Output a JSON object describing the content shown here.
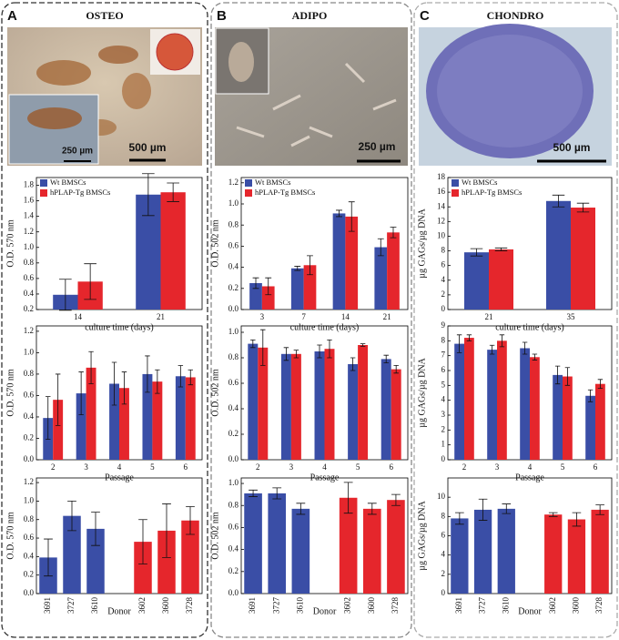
{
  "panels": [
    {
      "letter": "A",
      "title": "OSTEO",
      "scale_bars": [
        "250 µm",
        "500 µm"
      ]
    },
    {
      "letter": "B",
      "title": "ADIPO",
      "scale_bars": [
        "250 µm"
      ]
    },
    {
      "letter": "C",
      "title": "CHONDRO",
      "scale_bars": [
        "500 µm"
      ]
    }
  ],
  "chart_data": [
    {
      "type": "bar",
      "ylabel": "O.D. 570 nm",
      "xlabel": "culture time (days)",
      "categories": [
        "14",
        "21"
      ],
      "series": [
        {
          "name": "Wt BMSCs",
          "color": "#3a4ea6",
          "values": [
            0.39,
            1.68
          ],
          "errors": [
            0.2,
            0.27
          ]
        },
        {
          "name": "hPLAP-Tg BMSCs",
          "color": "#e5262c",
          "values": [
            0.56,
            1.71
          ],
          "errors": [
            0.23,
            0.12
          ]
        }
      ],
      "ylim": [
        0.2,
        1.9
      ],
      "yticks": [
        0.2,
        0.4,
        0.6,
        0.8,
        {
          "value": 1,
          "label": "1.0"
        },
        1.2,
        1.4,
        1.6,
        1.8
      ],
      "legend": "upper left"
    },
    {
      "type": "bar",
      "ylabel": "O.D. 570 nm",
      "xlabel": "Passage",
      "categories": [
        "2",
        "3",
        "4",
        "5",
        "6"
      ],
      "series": [
        {
          "color": "#3a4ea6",
          "values": [
            0.39,
            0.62,
            0.71,
            0.8,
            0.78
          ],
          "errors": [
            0.2,
            0.2,
            0.2,
            0.17,
            0.1
          ]
        },
        {
          "color": "#e5262c",
          "values": [
            0.56,
            0.86,
            0.67,
            0.73,
            0.77
          ],
          "errors": [
            0.24,
            0.15,
            0.15,
            0.11,
            0.07
          ]
        }
      ],
      "ylim": [
        0,
        1.25
      ],
      "yticks": [
        {
          "value": 0,
          "label": "0.0"
        },
        0.2,
        0.4,
        0.6,
        0.8,
        {
          "value": 1,
          "label": "1.0"
        },
        1.2
      ]
    },
    {
      "type": "bar",
      "ylabel": "O.D. 570 nm",
      "xlabel": "Donor",
      "categories": [
        "3691",
        "3727",
        "3610",
        null,
        "3602",
        "3600",
        "3728"
      ],
      "series": [
        {
          "color": "#3a4ea6",
          "values": [
            0.39,
            0.84,
            0.7,
            null,
            null,
            null,
            null
          ],
          "errors": [
            0.2,
            0.16,
            0.18,
            null,
            null,
            null,
            null
          ]
        },
        {
          "color": "#e5262c",
          "values": [
            null,
            null,
            null,
            null,
            0.56,
            0.68,
            0.79
          ],
          "errors": [
            null,
            null,
            null,
            null,
            0.24,
            0.29,
            0.15
          ]
        }
      ],
      "ylim": [
        0,
        1.25
      ],
      "yticks": [
        {
          "value": 0,
          "label": "0.0"
        },
        0.2,
        0.4,
        0.6,
        0.8,
        {
          "value": 1,
          "label": "1.0"
        },
        1.2
      ]
    },
    {
      "type": "bar",
      "ylabel": "O.D. 502 nm",
      "xlabel": "culture time (days)",
      "categories": [
        "3",
        "7",
        "14",
        "21"
      ],
      "series": [
        {
          "name": "Wt BMSCs",
          "color": "#3a4ea6",
          "values": [
            0.25,
            0.39,
            0.91,
            0.59
          ],
          "errors": [
            0.05,
            0.02,
            0.03,
            0.08
          ]
        },
        {
          "name": "hPLAP-Tg BMSCs",
          "color": "#e5262c",
          "values": [
            0.22,
            0.42,
            0.88,
            0.73
          ],
          "errors": [
            0.08,
            0.09,
            0.14,
            0.05
          ]
        }
      ],
      "ylim": [
        0,
        1.25
      ],
      "yticks": [
        {
          "value": 0,
          "label": "0.0"
        },
        0.2,
        0.4,
        0.6,
        0.8,
        {
          "value": 1,
          "label": "1.0"
        },
        1.2
      ],
      "legend": "upper left"
    },
    {
      "type": "bar",
      "ylabel": "O.D. 502 nm",
      "xlabel": "Passage",
      "categories": [
        "2",
        "3",
        "4",
        "5",
        "6"
      ],
      "series": [
        {
          "color": "#3a4ea6",
          "values": [
            0.91,
            0.83,
            0.85,
            0.75,
            0.79
          ],
          "errors": [
            0.03,
            0.05,
            0.05,
            0.05,
            0.03
          ]
        },
        {
          "color": "#e5262c",
          "values": [
            0.88,
            0.83,
            0.87,
            0.9,
            0.71
          ],
          "errors": [
            0.14,
            0.03,
            0.07,
            0.01,
            0.03
          ]
        }
      ],
      "ylim": [
        0,
        1.05
      ],
      "yticks": [
        {
          "value": 0,
          "label": "0.0"
        },
        0.2,
        0.4,
        0.6,
        0.8,
        {
          "value": 1,
          "label": "1.0"
        }
      ]
    },
    {
      "type": "bar",
      "ylabel": "O.D. 502 nm",
      "xlabel": "Donor",
      "categories": [
        "3691",
        "3727",
        "3610",
        null,
        "3602",
        "3600",
        "3728"
      ],
      "series": [
        {
          "color": "#3a4ea6",
          "values": [
            0.91,
            0.91,
            0.77,
            null,
            null,
            null,
            null
          ],
          "errors": [
            0.03,
            0.05,
            0.05,
            null,
            null,
            null,
            null
          ]
        },
        {
          "color": "#e5262c",
          "values": [
            null,
            null,
            null,
            null,
            0.87,
            0.77,
            0.85
          ],
          "errors": [
            null,
            null,
            null,
            null,
            0.14,
            0.05,
            0.05
          ]
        }
      ],
      "ylim": [
        0,
        1.05
      ],
      "yticks": [
        {
          "value": 0,
          "label": "0.0"
        },
        0.2,
        0.4,
        0.6,
        0.8,
        {
          "value": 1,
          "label": "1.0"
        }
      ]
    },
    {
      "type": "bar",
      "ylabel": "µg GAGs/µg DNA",
      "xlabel": "culture time (days)",
      "categories": [
        "21",
        "35"
      ],
      "series": [
        {
          "name": "Wt BMSCs",
          "color": "#3a4ea6",
          "values": [
            7.8,
            14.8
          ],
          "errors": [
            0.5,
            0.8
          ]
        },
        {
          "name": "hPLAP-Tg BMSCs",
          "color": "#e5262c",
          "values": [
            8.2,
            13.9
          ],
          "errors": [
            0.2,
            0.6
          ]
        }
      ],
      "ylim": [
        0,
        18
      ],
      "yticks": [
        0,
        2,
        4,
        6,
        8,
        10,
        12,
        14,
        16,
        18
      ],
      "legend": "upper left"
    },
    {
      "type": "bar",
      "ylabel": "µg GAGs/µg DNA",
      "xlabel": "Passage",
      "categories": [
        "2",
        "3",
        "4",
        "5",
        "6"
      ],
      "series": [
        {
          "color": "#3a4ea6",
          "values": [
            7.8,
            7.4,
            7.5,
            5.7,
            4.3
          ],
          "errors": [
            0.6,
            0.3,
            0.4,
            0.6,
            0.4
          ]
        },
        {
          "color": "#e5262c",
          "values": [
            8.2,
            8.0,
            6.9,
            5.6,
            5.1
          ],
          "errors": [
            0.2,
            0.4,
            0.2,
            0.6,
            0.3
          ]
        }
      ],
      "ylim": [
        0,
        9
      ],
      "yticks": [
        0,
        1,
        2,
        3,
        4,
        5,
        6,
        7,
        8,
        9
      ]
    },
    {
      "type": "bar",
      "ylabel": "µg GAGs/µg DNA",
      "xlabel": "Donor",
      "categories": [
        "3691",
        "3727",
        "3610",
        null,
        "3602",
        "3600",
        "3728"
      ],
      "series": [
        {
          "color": "#3a4ea6",
          "values": [
            7.8,
            8.7,
            8.8,
            null,
            null,
            null,
            null
          ],
          "errors": [
            0.6,
            1.1,
            0.5,
            null,
            null,
            null,
            null
          ]
        },
        {
          "color": "#e5262c",
          "values": [
            null,
            null,
            null,
            null,
            8.2,
            7.7,
            8.7
          ],
          "errors": [
            null,
            null,
            null,
            null,
            0.2,
            0.7,
            0.5
          ]
        }
      ],
      "ylim": [
        0,
        12
      ],
      "yticks": [
        0,
        2,
        4,
        6,
        8,
        10
      ]
    }
  ]
}
